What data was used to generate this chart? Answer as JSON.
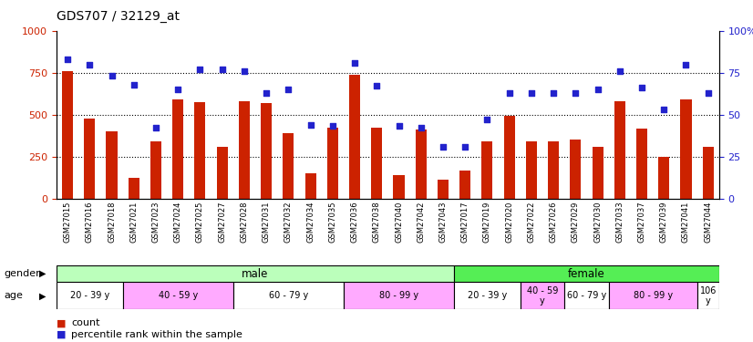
{
  "title": "GDS707 / 32129_at",
  "samples": [
    "GSM27015",
    "GSM27016",
    "GSM27018",
    "GSM27021",
    "GSM27023",
    "GSM27024",
    "GSM27025",
    "GSM27027",
    "GSM27028",
    "GSM27031",
    "GSM27032",
    "GSM27034",
    "GSM27035",
    "GSM27036",
    "GSM27038",
    "GSM27040",
    "GSM27042",
    "GSM27043",
    "GSM27017",
    "GSM27019",
    "GSM27020",
    "GSM27022",
    "GSM27026",
    "GSM27029",
    "GSM27030",
    "GSM27033",
    "GSM27037",
    "GSM27039",
    "GSM27041",
    "GSM27044"
  ],
  "counts": [
    760,
    475,
    400,
    120,
    340,
    590,
    575,
    310,
    580,
    570,
    390,
    150,
    420,
    740,
    420,
    140,
    410,
    110,
    165,
    340,
    495,
    340,
    340,
    350,
    305,
    580,
    415,
    250,
    590,
    310
  ],
  "percentiles": [
    83,
    80,
    73,
    68,
    42,
    65,
    77,
    77,
    76,
    63,
    65,
    44,
    43,
    81,
    67,
    43,
    42,
    31,
    31,
    47,
    63,
    63,
    63,
    63,
    65,
    76,
    66,
    53,
    80,
    63
  ],
  "bar_color": "#cc2200",
  "dot_color": "#2222cc",
  "ylim_left": [
    0,
    1000
  ],
  "ylim_right": [
    0,
    100
  ],
  "yticks_left": [
    0,
    250,
    500,
    750,
    1000
  ],
  "yticks_right": [
    0,
    25,
    50,
    75,
    100
  ],
  "ytick_labels_right": [
    "0",
    "25",
    "50",
    "75",
    "100%"
  ],
  "gender_male_count": 18,
  "gender_female_count": 12,
  "gender_male_label": "male",
  "gender_female_label": "female",
  "gender_male_color": "#bbffbb",
  "gender_female_color": "#55ee55",
  "age_groups": [
    {
      "label": "20 - 39 y",
      "start": 0,
      "end": 3,
      "color": "#ffffff"
    },
    {
      "label": "40 - 59 y",
      "start": 3,
      "end": 8,
      "color": "#ffaaff"
    },
    {
      "label": "60 - 79 y",
      "start": 8,
      "end": 13,
      "color": "#ffffff"
    },
    {
      "label": "80 - 99 y",
      "start": 13,
      "end": 18,
      "color": "#ffaaff"
    },
    {
      "label": "20 - 39 y",
      "start": 18,
      "end": 21,
      "color": "#ffffff"
    },
    {
      "label": "40 - 59\ny",
      "start": 21,
      "end": 23,
      "color": "#ffaaff"
    },
    {
      "label": "60 - 79 y",
      "start": 23,
      "end": 25,
      "color": "#ffffff"
    },
    {
      "label": "80 - 99 y",
      "start": 25,
      "end": 29,
      "color": "#ffaaff"
    },
    {
      "label": "106\ny",
      "start": 29,
      "end": 30,
      "color": "#ffffff"
    }
  ],
  "legend_count_color": "#cc2200",
  "legend_pct_color": "#2222cc",
  "legend_count_label": "count",
  "legend_pct_label": "percentile rank within the sample",
  "background_color": "#ffffff"
}
